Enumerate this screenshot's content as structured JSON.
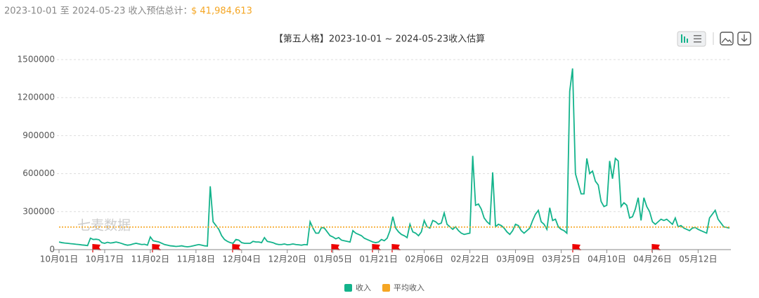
{
  "header": {
    "label": "2023-10-01 至 2024-05-23 收入预估总计：",
    "total": "$ 41,984,613"
  },
  "watermark": "七麦数据",
  "chart_data": {
    "type": "line",
    "title": "【第五人格】2023-10-01 ~ 2024-05-23收入估算",
    "categories": [
      "10月01日",
      null,
      null,
      null,
      null,
      null,
      null,
      null,
      null,
      null,
      null,
      null,
      null,
      null,
      null,
      null,
      "10月17日",
      null,
      null,
      null,
      null,
      null,
      null,
      null,
      null,
      null,
      null,
      null,
      null,
      null,
      null,
      null,
      "11月02日",
      null,
      null,
      null,
      null,
      null,
      null,
      null,
      null,
      null,
      null,
      null,
      null,
      null,
      null,
      null,
      "11月18日",
      null,
      null,
      null,
      null,
      null,
      null,
      null,
      null,
      null,
      null,
      null,
      null,
      null,
      null,
      null,
      "12月04日",
      null,
      null,
      null,
      null,
      null,
      null,
      null,
      null,
      null,
      null,
      null,
      null,
      null,
      null,
      null,
      "12月20日",
      null,
      null,
      null,
      null,
      null,
      null,
      null,
      null,
      null,
      null,
      null,
      null,
      null,
      null,
      null,
      "01月05日",
      null,
      null,
      null,
      null,
      null,
      null,
      null,
      null,
      null,
      null,
      null,
      null,
      null,
      null,
      null,
      "01月21日",
      null,
      null,
      null,
      null,
      null,
      null,
      null,
      null,
      null,
      null,
      null,
      null,
      null,
      null,
      null,
      "02月06日",
      null,
      null,
      null,
      null,
      null,
      null,
      null,
      null,
      null,
      null,
      null,
      null,
      null,
      null,
      null,
      "02月22日",
      null,
      null,
      null,
      null,
      null,
      null,
      null,
      null,
      null,
      null,
      null,
      null,
      null,
      null,
      null,
      "03月09日",
      null,
      null,
      null,
      null,
      null,
      null,
      null,
      null,
      null,
      null,
      null,
      null,
      null,
      null,
      null,
      "03月25日",
      null,
      null,
      null,
      null,
      null,
      null,
      null,
      null,
      null,
      null,
      null,
      null,
      null,
      null,
      null,
      "04月10日",
      null,
      null,
      null,
      null,
      null,
      null,
      null,
      null,
      null,
      null,
      null,
      null,
      null,
      null,
      null,
      "04月26日",
      null,
      null,
      null,
      null,
      null,
      null,
      null,
      null,
      null,
      null,
      null,
      null,
      null,
      null,
      null,
      "05月12日",
      null,
      null,
      null,
      null,
      null,
      null,
      null,
      null,
      null,
      null,
      null
    ],
    "series": [
      {
        "name": "收入",
        "color": "#13b38b",
        "values": [
          60000,
          55000,
          52000,
          50000,
          47000,
          45000,
          42000,
          40000,
          37000,
          35000,
          32000,
          90000,
          80000,
          82000,
          78000,
          55000,
          50000,
          58000,
          52000,
          55000,
          60000,
          55000,
          48000,
          40000,
          35000,
          38000,
          45000,
          50000,
          45000,
          40000,
          42000,
          35000,
          100000,
          70000,
          65000,
          60000,
          50000,
          40000,
          35000,
          30000,
          28000,
          25000,
          27000,
          30000,
          25000,
          22000,
          25000,
          30000,
          35000,
          40000,
          35000,
          30000,
          28000,
          500000,
          220000,
          190000,
          160000,
          110000,
          80000,
          65000,
          55000,
          50000,
          80000,
          75000,
          55000,
          50000,
          50000,
          50000,
          65000,
          60000,
          60000,
          55000,
          95000,
          65000,
          60000,
          55000,
          45000,
          40000,
          40000,
          45000,
          38000,
          40000,
          45000,
          40000,
          38000,
          35000,
          40000,
          38000,
          220000,
          170000,
          130000,
          130000,
          175000,
          170000,
          140000,
          110000,
          100000,
          85000,
          95000,
          75000,
          70000,
          65000,
          60000,
          150000,
          130000,
          120000,
          110000,
          90000,
          80000,
          70000,
          60000,
          55000,
          60000,
          80000,
          70000,
          90000,
          150000,
          260000,
          170000,
          140000,
          120000,
          110000,
          95000,
          200000,
          140000,
          130000,
          110000,
          140000,
          230000,
          180000,
          170000,
          230000,
          220000,
          200000,
          210000,
          290000,
          200000,
          180000,
          160000,
          180000,
          150000,
          130000,
          120000,
          125000,
          130000,
          740000,
          350000,
          360000,
          320000,
          250000,
          220000,
          200000,
          610000,
          180000,
          200000,
          190000,
          170000,
          140000,
          120000,
          150000,
          200000,
          190000,
          150000,
          130000,
          150000,
          170000,
          230000,
          280000,
          310000,
          220000,
          200000,
          160000,
          330000,
          230000,
          240000,
          180000,
          160000,
          150000,
          130000,
          1250000,
          1430000,
          600000,
          520000,
          440000,
          440000,
          720000,
          600000,
          620000,
          540000,
          510000,
          380000,
          340000,
          350000,
          700000,
          560000,
          720000,
          700000,
          340000,
          370000,
          350000,
          250000,
          260000,
          320000,
          410000,
          230000,
          410000,
          340000,
          300000,
          220000,
          200000,
          220000,
          240000,
          230000,
          240000,
          220000,
          200000,
          250000,
          180000,
          190000,
          170000,
          160000,
          150000,
          170000,
          175000,
          160000,
          150000,
          140000,
          130000,
          250000,
          280000,
          310000,
          240000,
          210000,
          180000,
          175000,
          170000
        ]
      }
    ],
    "reference_line": {
      "name": "平均收入",
      "color": "#f5a623",
      "value": 177900
    },
    "ylim": [
      0,
      1500000
    ],
    "yticks": [
      0,
      300000,
      600000,
      900000,
      1200000,
      1500000
    ],
    "grid": true
  }
}
